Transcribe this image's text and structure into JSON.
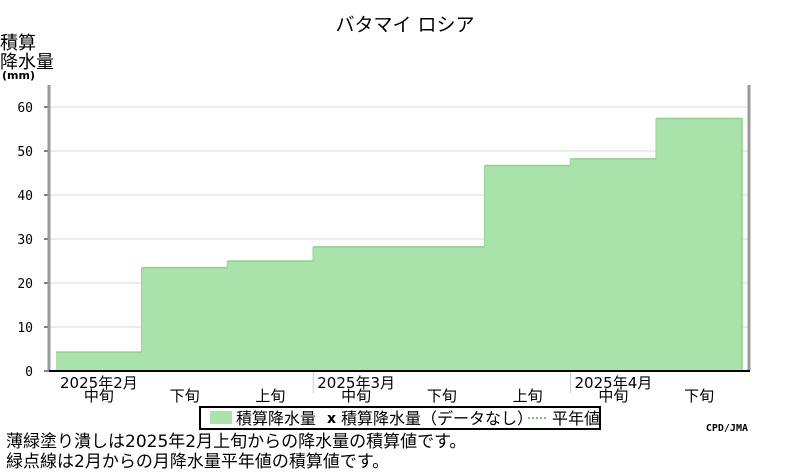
{
  "chart_data": {
    "type": "area",
    "title": "バタマイ ロシア",
    "ylabel": [
      "積算",
      "降水量",
      "(mm)"
    ],
    "ylim": [
      0,
      65
    ],
    "yticks": [
      0,
      10,
      20,
      30,
      40,
      50,
      60
    ],
    "grid": true,
    "categories": [
      "2025年2月 中旬",
      "2025年2月 下旬",
      "2025年3月 上旬",
      "2025年3月 中旬",
      "2025年3月 下旬",
      "2025年4月 上旬",
      "2025年4月 中旬",
      "2025年4月 下旬"
    ],
    "months": [
      "2025年2月",
      "2025年3月",
      "2025年4月"
    ],
    "dekads": [
      "中旬",
      "下旬",
      "上旬",
      "中旬",
      "下旬",
      "上旬",
      "中旬",
      "下旬"
    ],
    "values": [
      4.3,
      23.5,
      25.0,
      28.2,
      28.2,
      46.7,
      48.2,
      57.4
    ],
    "series_color": "#aae3aa",
    "legend": {
      "placement": "bottom-center",
      "filled_label": "積算降水量",
      "marker": "x",
      "missing_label": "積算降水量（データなし）",
      "line_label": "平年値"
    },
    "credit": "CPD/JMA"
  },
  "notes": [
    "薄緑塗り潰しは2025年2月上旬からの降水量の積算値です。",
    "緑点線は2月からの月降水量平年値の積算値です。"
  ]
}
